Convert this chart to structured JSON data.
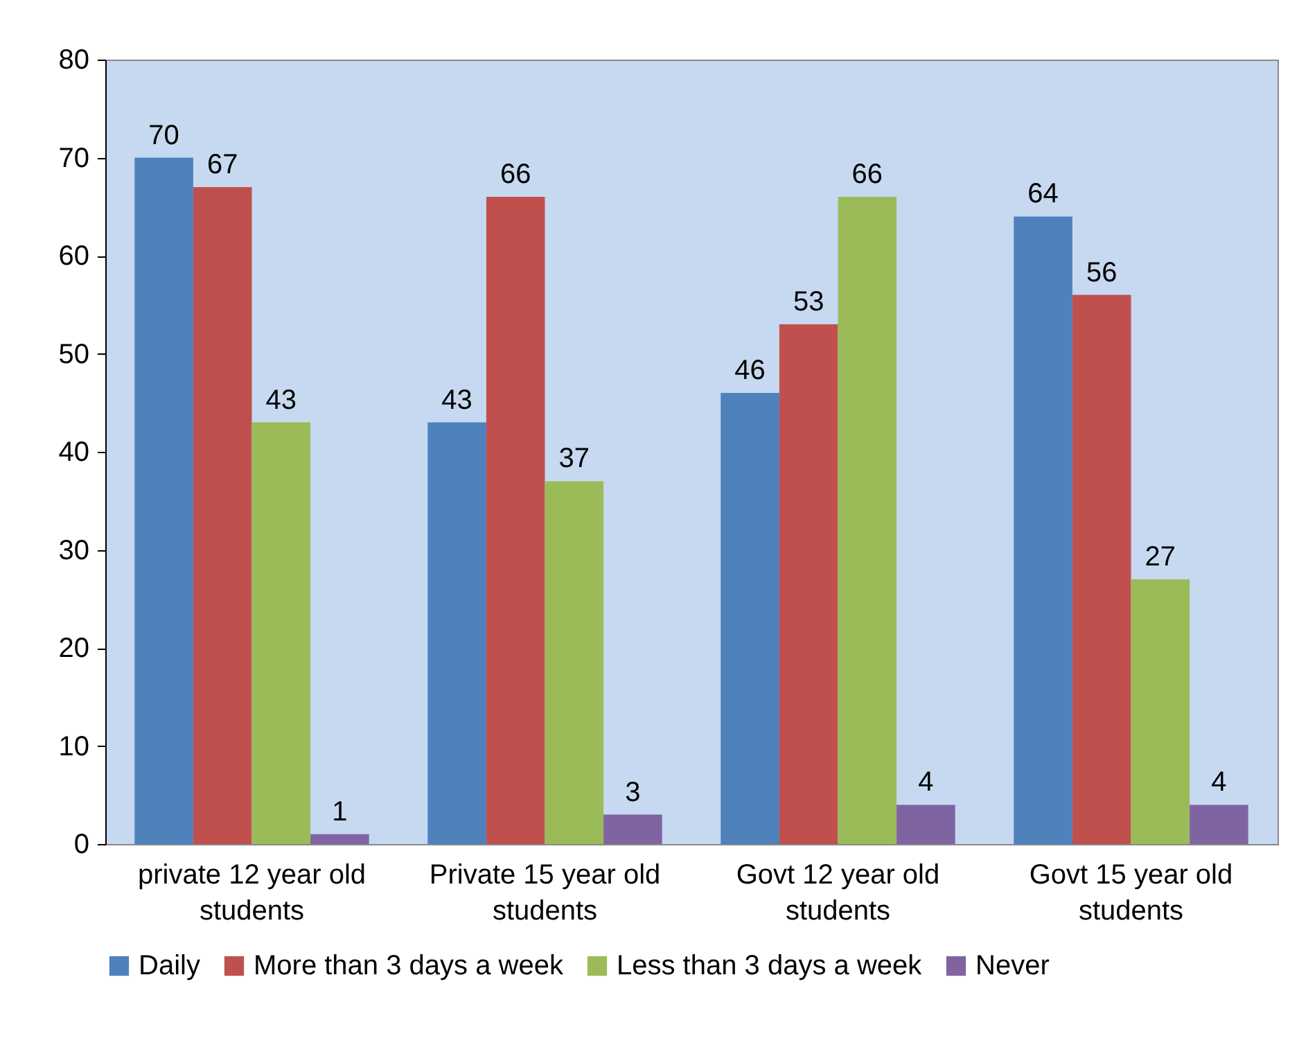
{
  "chart_data": {
    "type": "bar",
    "categories": [
      "private 12 year old students",
      "Private 15 year old students",
      "Govt  12 year old students",
      "Govt 15 year old students"
    ],
    "series": [
      {
        "name": "Daily",
        "color": "#4f81bd",
        "values": [
          70,
          43,
          46,
          64
        ]
      },
      {
        "name": "More than 3 days a week",
        "color": "#c0504d",
        "values": [
          67,
          66,
          53,
          56
        ]
      },
      {
        "name": "Less than 3 days a week",
        "color": "#9bbb59",
        "values": [
          43,
          37,
          66,
          27
        ]
      },
      {
        "name": "Never",
        "color": "#8064a2",
        "values": [
          1,
          3,
          4,
          4
        ]
      }
    ],
    "ylim": [
      0,
      80
    ],
    "yticks": [
      0,
      10,
      20,
      30,
      40,
      50,
      60,
      70,
      80
    ],
    "grid": false,
    "legend": "bottom",
    "data_labels": true
  }
}
